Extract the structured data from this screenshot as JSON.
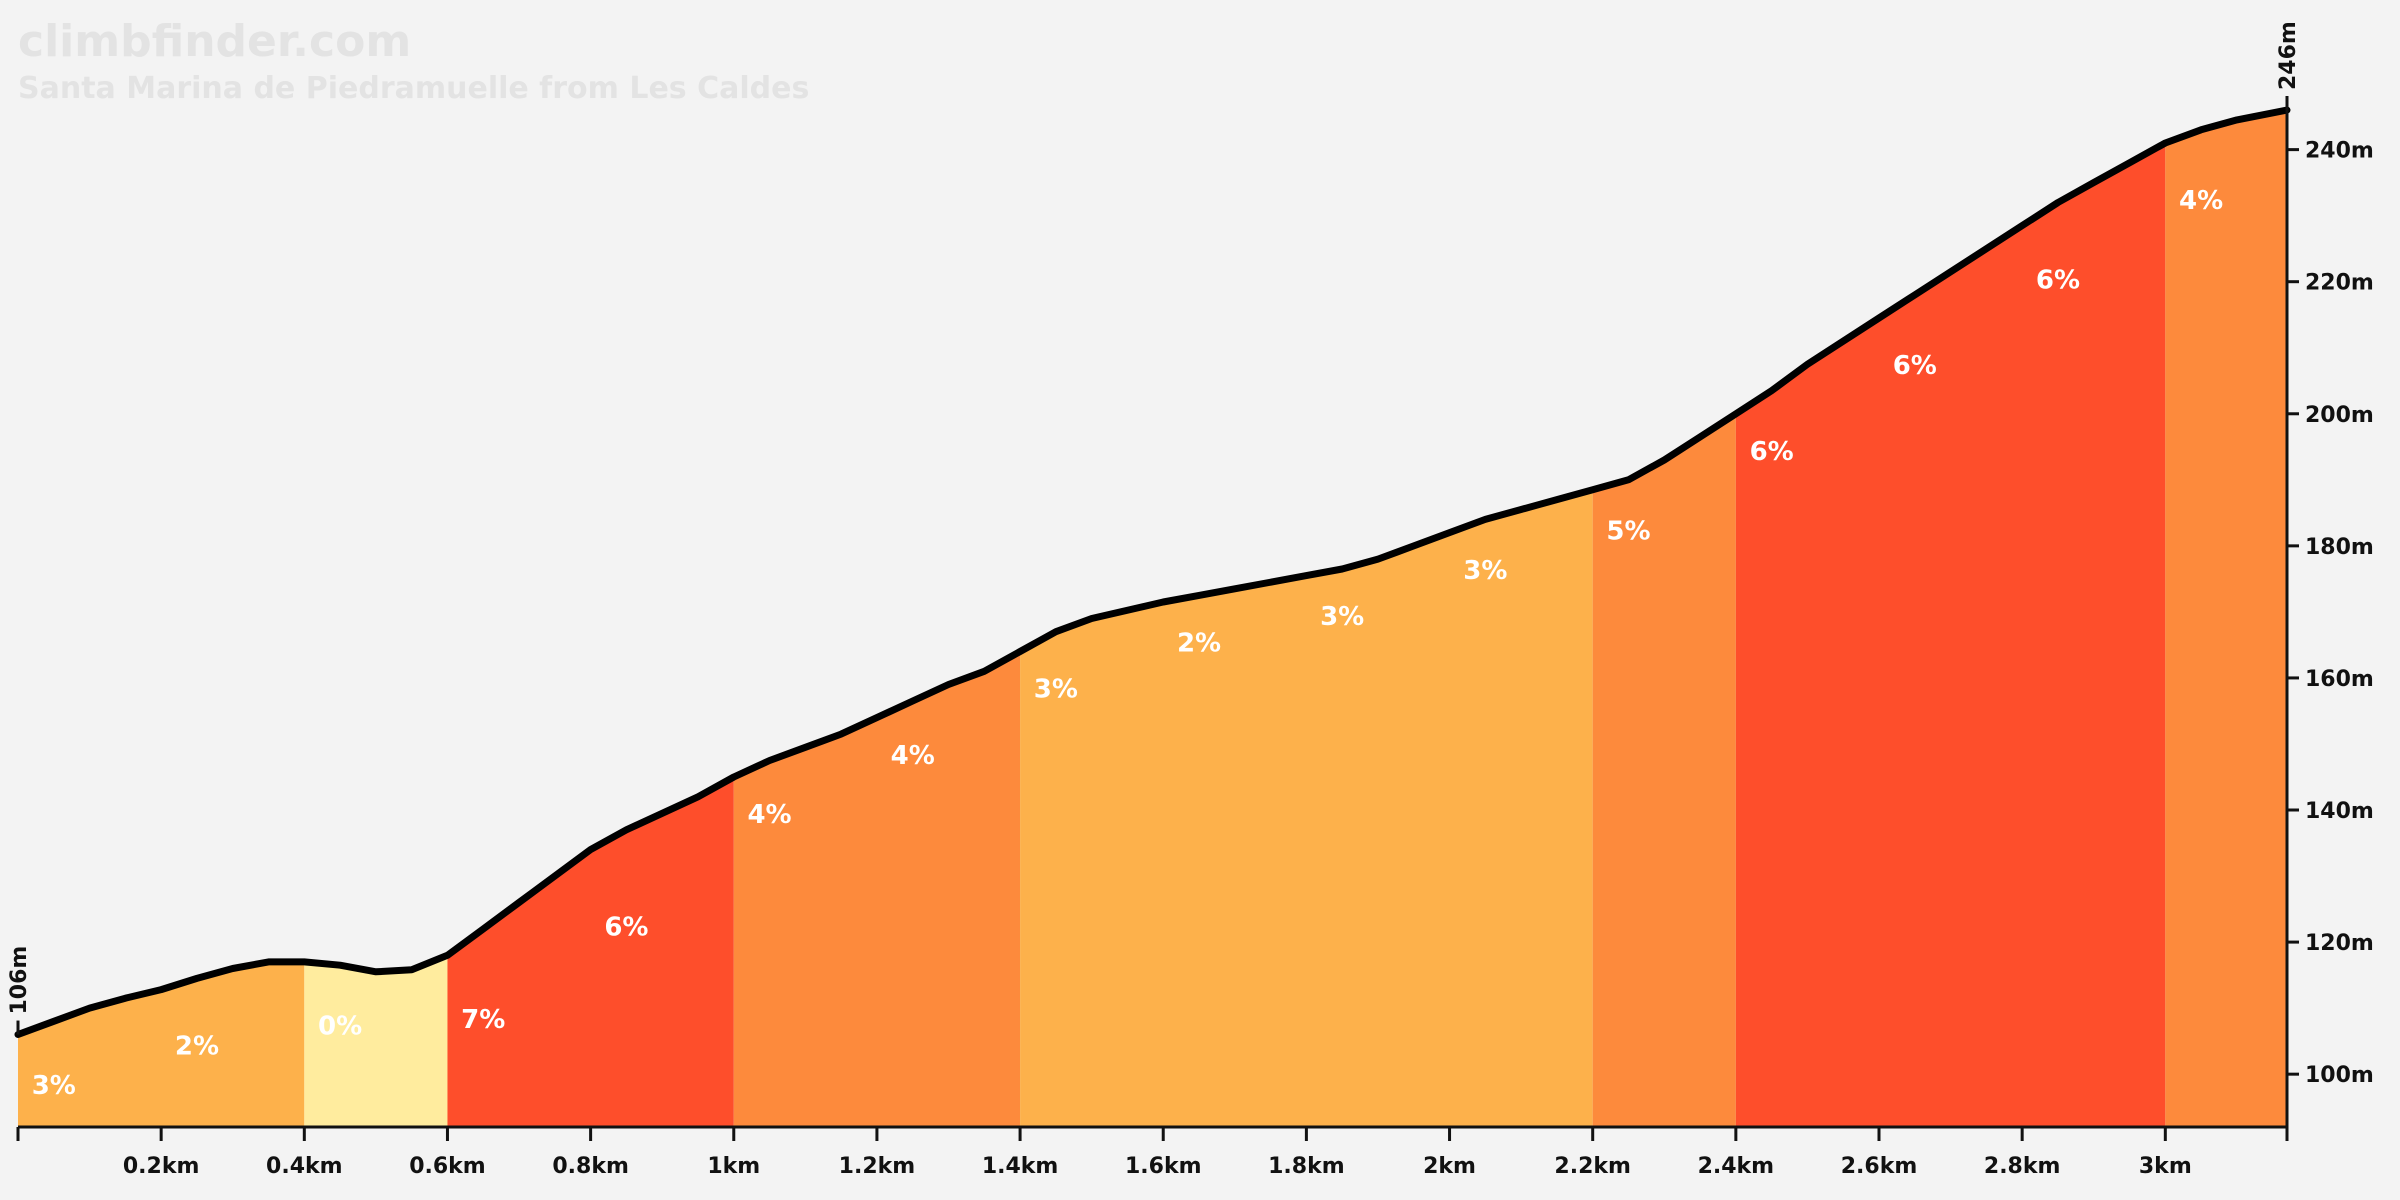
{
  "watermark": {
    "site": "climbfinder.com",
    "climb": "Santa Marina de Piedramuelle from Les Caldes"
  },
  "chart_data": {
    "type": "area",
    "title": "Santa Marina de Piedramuelle from Les Caldes",
    "xlabel": "",
    "ylabel": "",
    "x_unit": "km",
    "y_unit": "m",
    "xlim": [
      0,
      3.17
    ],
    "ylim": [
      92,
      246
    ],
    "grid": false,
    "start_label": "106m",
    "end_label": "246m",
    "x_ticks": [
      0.2,
      0.4,
      0.6,
      0.8,
      1,
      1.2,
      1.4,
      1.6,
      1.8,
      2,
      2.2,
      2.4,
      2.6,
      2.8,
      3
    ],
    "x_tick_labels": [
      "0.2km",
      "0.4km",
      "0.6km",
      "0.8km",
      "1km",
      "1.2km",
      "1.4km",
      "1.6km",
      "1.8km",
      "2km",
      "2.2km",
      "2.4km",
      "2.6km",
      "2.8km",
      "3km"
    ],
    "y_ticks": [
      100,
      120,
      140,
      160,
      180,
      200,
      220,
      240
    ],
    "y_tick_labels": [
      "100m",
      "120m",
      "140m",
      "160m",
      "180m",
      "200m",
      "220m",
      "240m"
    ],
    "profile": {
      "x": [
        0,
        0.05,
        0.1,
        0.15,
        0.2,
        0.25,
        0.3,
        0.35,
        0.4,
        0.45,
        0.5,
        0.55,
        0.6,
        0.65,
        0.7,
        0.8,
        0.85,
        0.95,
        1.0,
        1.05,
        1.1,
        1.15,
        1.2,
        1.25,
        1.3,
        1.35,
        1.4,
        1.45,
        1.5,
        1.6,
        1.65,
        1.7,
        1.8,
        1.85,
        1.9,
        1.95,
        2.0,
        2.05,
        2.1,
        2.15,
        2.2,
        2.25,
        2.3,
        2.35,
        2.4,
        2.45,
        2.5,
        2.6,
        2.65,
        2.7,
        2.75,
        2.8,
        2.85,
        2.9,
        2.95,
        3.0,
        3.05,
        3.1,
        3.17
      ],
      "y": [
        106,
        108,
        110,
        111.5,
        112.8,
        114.5,
        116,
        117,
        117,
        116.5,
        115.5,
        115.8,
        118,
        122,
        126,
        134,
        137,
        142,
        145,
        147.5,
        149.5,
        151.5,
        154,
        156.5,
        159,
        161,
        164,
        167,
        169,
        171.5,
        172.5,
        173.5,
        175.5,
        176.5,
        178,
        180,
        182,
        184,
        185.5,
        187,
        188.5,
        190,
        193,
        196.5,
        200,
        203.5,
        207.5,
        214.5,
        218,
        221.5,
        225,
        228.5,
        232,
        235,
        238,
        241,
        243,
        244.5,
        246
      ]
    },
    "segments": [
      {
        "from": 0.0,
        "to": 0.4,
        "grade": "3%",
        "color": "#fdb14b"
      },
      {
        "from": 0.4,
        "to": 0.6,
        "grade": "0%",
        "color": "#ffec9e"
      },
      {
        "from": 0.6,
        "to": 1.0,
        "grade": "7%",
        "color": "#fe4e2b"
      },
      {
        "from": 1.0,
        "to": 1.4,
        "grade": "4%",
        "color": "#fd8a3c"
      },
      {
        "from": 1.4,
        "to": 2.2,
        "grade": "2%",
        "color": "#fdb14b"
      },
      {
        "from": 2.2,
        "to": 2.4,
        "grade": "5%",
        "color": "#fd8a3c"
      },
      {
        "from": 2.4,
        "to": 3.0,
        "grade": "6%",
        "color": "#fe4e2b"
      },
      {
        "from": 3.0,
        "to": 3.17,
        "grade": "4%",
        "color": "#fd8a3c"
      }
    ],
    "grade_labels": [
      {
        "km": 0.05,
        "text": "3%",
        "elev": 97
      },
      {
        "km": 0.25,
        "text": "2%",
        "elev": 103
      },
      {
        "km": 0.45,
        "text": "0%",
        "elev": 106
      },
      {
        "km": 0.65,
        "text": "7%",
        "elev": 107
      },
      {
        "km": 0.85,
        "text": "6%",
        "elev": 121
      },
      {
        "km": 1.05,
        "text": "4%",
        "elev": 138
      },
      {
        "km": 1.25,
        "text": "4%",
        "elev": 147
      },
      {
        "km": 1.45,
        "text": "3%",
        "elev": 157
      },
      {
        "km": 1.65,
        "text": "2%",
        "elev": 164
      },
      {
        "km": 1.85,
        "text": "3%",
        "elev": 168
      },
      {
        "km": 2.05,
        "text": "3%",
        "elev": 175
      },
      {
        "km": 2.25,
        "text": "5%",
        "elev": 181
      },
      {
        "km": 2.45,
        "text": "6%",
        "elev": 193
      },
      {
        "km": 2.65,
        "text": "6%",
        "elev": 206
      },
      {
        "km": 2.85,
        "text": "6%",
        "elev": 219
      },
      {
        "km": 3.05,
        "text": "4%",
        "elev": 231
      }
    ],
    "line_color": "#000000",
    "background": "#f3f3f3"
  }
}
